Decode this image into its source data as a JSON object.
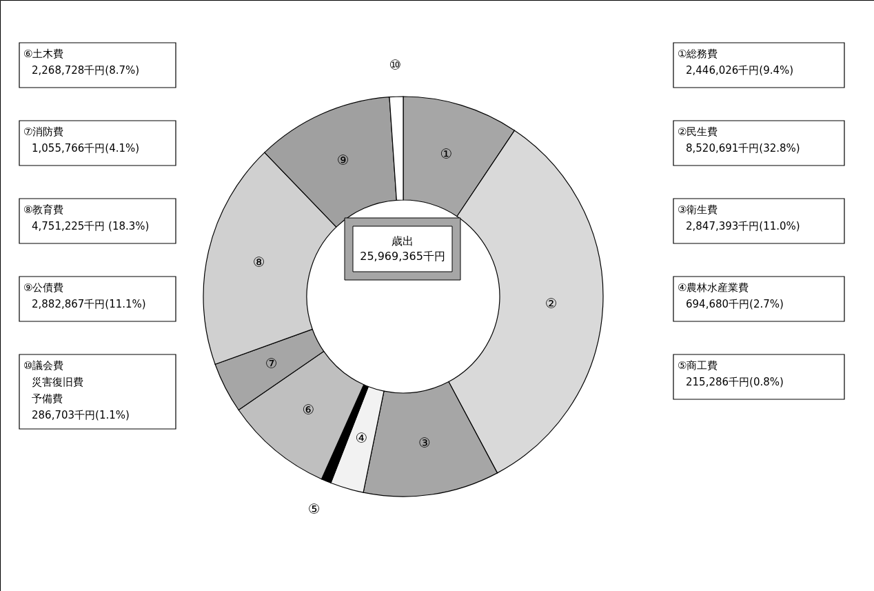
{
  "chart_data": {
    "type": "donut",
    "categories": [
      "①",
      "②",
      "③",
      "④",
      "⑤",
      "⑥",
      "⑦",
      "⑧",
      "⑨",
      "⑩"
    ],
    "values": [
      9.4,
      32.8,
      11.0,
      2.7,
      0.8,
      8.7,
      4.1,
      18.3,
      11.1,
      1.1
    ],
    "colors": [
      "#a6a6a6",
      "#d9d9d9",
      "#a6a6a6",
      "#f2f2f2",
      "#000000",
      "#bfbfbf",
      "#a6a6a6",
      "#d0d0d0",
      "#a0a0a0",
      "#ffffff"
    ],
    "annotations": [
      "歳出",
      "25,969,365千円",
      {
        "text": "①総務費",
        "x": "①"
      },
      {
        "text": "2,446,026千円(9.4%)",
        "x": "①"
      },
      {
        "text": "②民生費",
        "x": "②"
      },
      {
        "text": "8,520,691千円(32.8%)",
        "x": "②"
      },
      {
        "text": "③衛生費",
        "x": "③"
      },
      {
        "text": "2,847,393千円(11.0%)",
        "x": "③"
      },
      {
        "text": "④農林水産業費",
        "x": "④"
      },
      {
        "text": "694,680千円(2.7%)",
        "x": "④"
      },
      {
        "text": "⑤商工費",
        "x": "⑤"
      },
      {
        "text": "215,286千円(0.8%)",
        "x": "⑤"
      },
      {
        "text": "⑥土木費",
        "x": "⑥"
      },
      {
        "text": "2,268,728千円(8.7%)",
        "x": "⑥"
      },
      {
        "text": "⑦消防費",
        "x": "⑦"
      },
      {
        "text": "1,055,766千円(4.1%)",
        "x": "⑦"
      },
      {
        "text": "⑧教育費",
        "x": "⑧"
      },
      {
        "text": "4,751,225千円 (18.3%)",
        "x": "⑧"
      },
      {
        "text": "⑨公債費",
        "x": "⑨"
      },
      {
        "text": "2,882,867千円(11.1%)",
        "x": "⑨"
      },
      {
        "text": "⑩議会費",
        "x": "⑩"
      },
      {
        "text": "災害復旧費",
        "x": "⑩"
      },
      {
        "text": "予備費",
        "x": "⑩"
      },
      {
        "text": "286,703千円(1.1%)",
        "x": "⑩"
      }
    ]
  }
}
